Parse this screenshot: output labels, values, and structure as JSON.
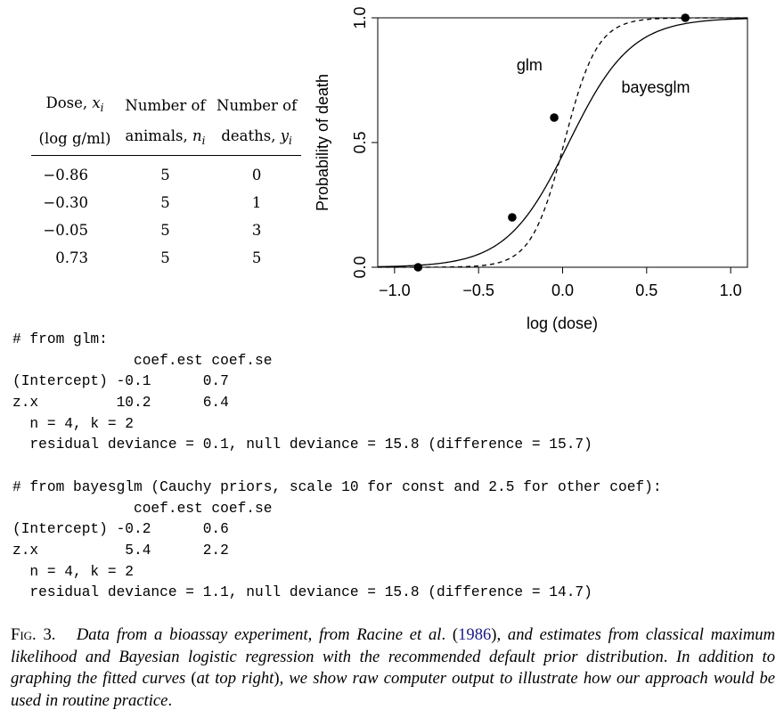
{
  "table": {
    "headers": [
      {
        "line1_text": "Dose, ",
        "line1_var": "x",
        "line1_sub": "i",
        "line2_text": "(log g/ml)",
        "line2_var": "",
        "line2_sub": ""
      },
      {
        "line1_text": "Number of",
        "line1_var": "",
        "line1_sub": "",
        "line2_text": "animals, ",
        "line2_var": "n",
        "line2_sub": "i"
      },
      {
        "line1_text": "Number of",
        "line1_var": "",
        "line1_sub": "",
        "line2_text": "deaths, ",
        "line2_var": "y",
        "line2_sub": "i"
      }
    ],
    "rows": [
      [
        "−0.86",
        "5",
        "0"
      ],
      [
        "−0.30",
        "5",
        "1"
      ],
      [
        "−0.05",
        "5",
        "3"
      ],
      [
        "0.73",
        "5",
        "5"
      ]
    ]
  },
  "chart_data": {
    "type": "line",
    "title": "",
    "xlabel": "log (dose)",
    "ylabel": "Probability of death",
    "xlim": [
      -1.1,
      1.1
    ],
    "ylim": [
      0,
      1
    ],
    "xticks": [
      -1.0,
      -0.5,
      0.0,
      0.5,
      1.0
    ],
    "xtick_labels": [
      "−1.0",
      "−0.5",
      "0.0",
      "0.5",
      "1.0"
    ],
    "yticks": [
      0,
      0.5,
      1.0
    ],
    "ytick_labels": [
      "0.0",
      "0.5",
      "1.0"
    ],
    "grid": false,
    "points": {
      "x": [
        -0.86,
        -0.3,
        -0.05,
        0.73
      ],
      "y": [
        0.0,
        0.2,
        0.6,
        1.0
      ]
    },
    "series": [
      {
        "name": "glm",
        "intercept": -0.1,
        "slope": 10.2,
        "style": "dashed",
        "label_at": [
          -0.12,
          0.79
        ]
      },
      {
        "name": "bayesglm",
        "intercept": -0.2,
        "slope": 5.4,
        "style": "solid",
        "label_at": [
          0.35,
          0.7
        ]
      }
    ]
  },
  "output": {
    "lines": [
      "# from glm:",
      "              coef.est coef.se",
      "(Intercept) -0.1      0.7",
      "z.x         10.2      6.4",
      "  n = 4, k = 2",
      "  residual deviance = 0.1, null deviance = 15.8 (difference = 15.7)",
      "",
      "# from bayesglm (Cauchy priors, scale 10 for const and 2.5 for other coef):",
      "              coef.est coef.se",
      "(Intercept) -0.2      0.6",
      "z.x          5.4      2.2",
      "  n = 4, k = 2",
      "  residual deviance = 1.1, null deviance = 15.8 (difference = 14.7)"
    ]
  },
  "caption": {
    "label": "Fig. 3.",
    "part1": "Data from a bioassay experiment",
    "comma1": ", ",
    "part2": "from Racine et al",
    "dot": ". ",
    "open_paren": "(",
    "year": "1986",
    "close_paren": ")",
    "part3": ", and estimates from classical maximum likelihood and Bayesian logistic regression with the recommended default prior distribution",
    "dot2": ". ",
    "part4": "In addition to graphing the fitted curves ",
    "open_paren2": "(",
    "part5": "at top right",
    "close_paren2": ")",
    "part6": ", we show raw computer output to illustrate how our approach would be used in routine practice",
    "end": "."
  }
}
